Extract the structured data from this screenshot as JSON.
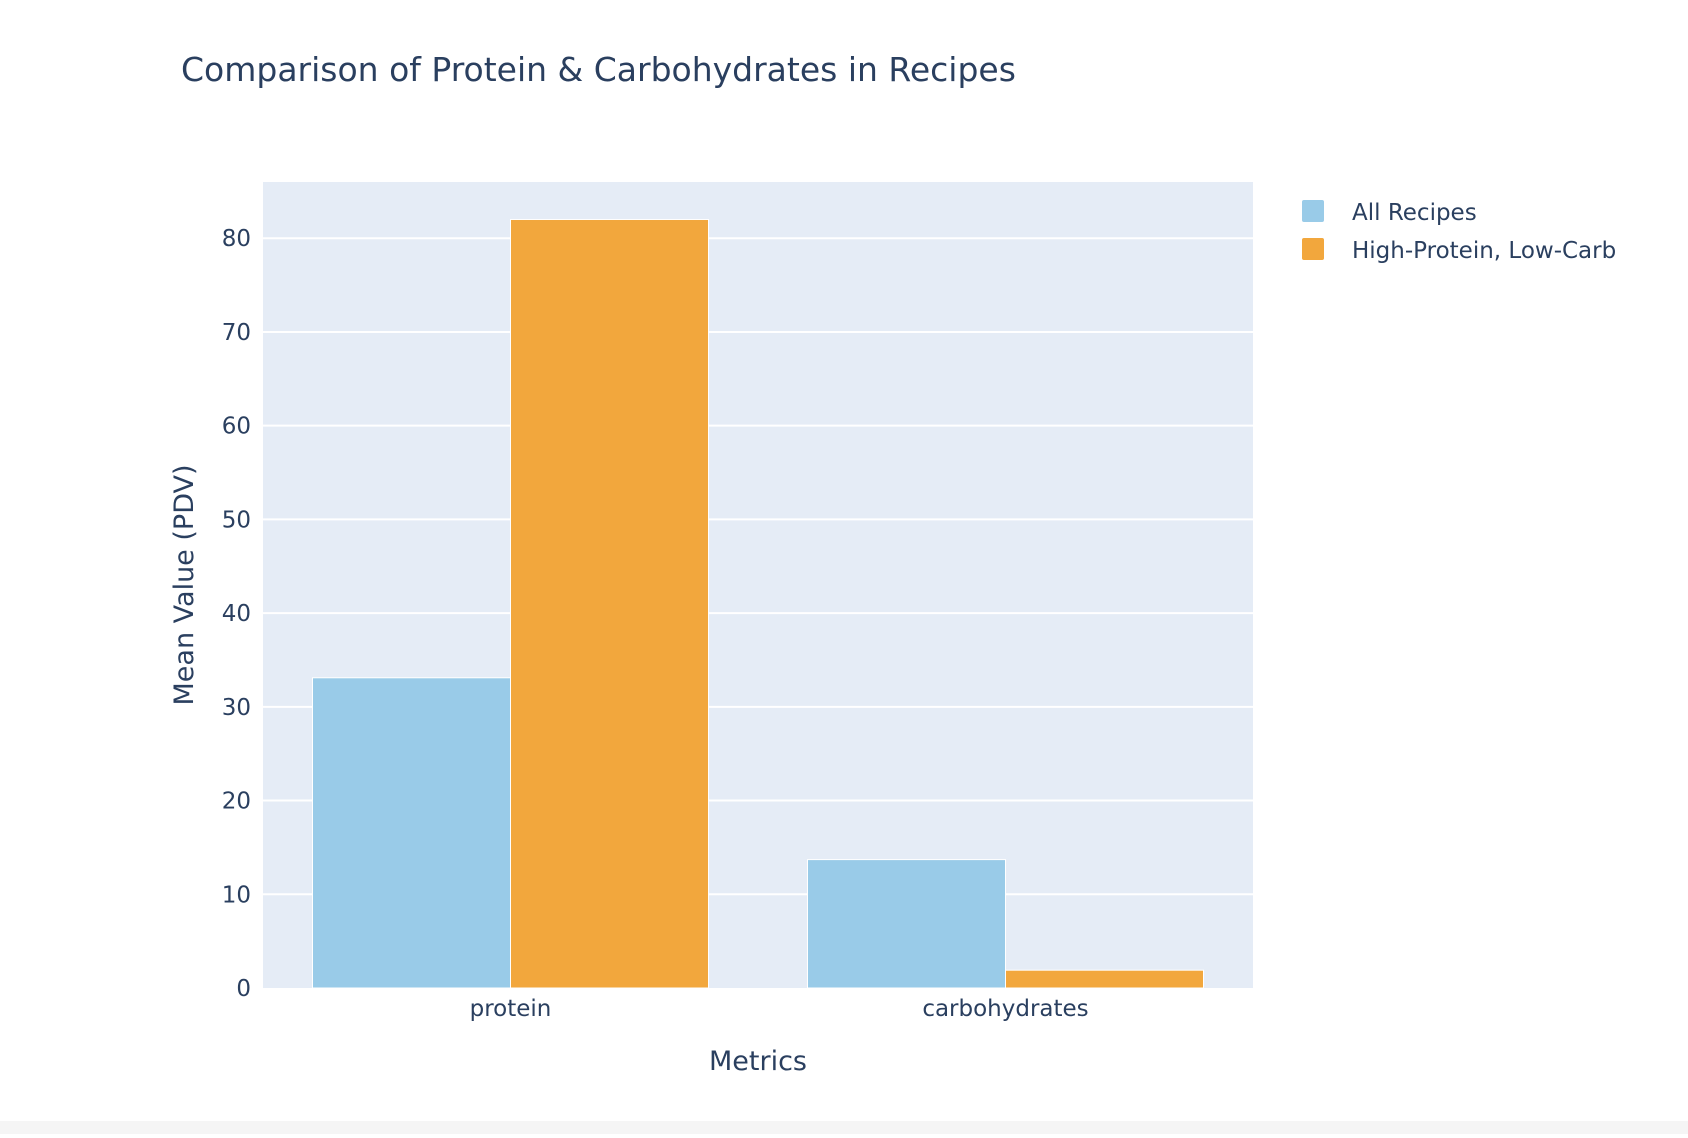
{
  "chart_data": {
    "type": "bar",
    "title": "Comparison of Protein & Carbohydrates in Recipes",
    "xlabel": "Metrics",
    "ylabel": "Mean Value (PDV)",
    "categories": [
      "protein",
      "carbohydrates"
    ],
    "series": [
      {
        "name": "All Recipes",
        "color": "#99cbe8",
        "values": [
          33.1,
          13.7
        ]
      },
      {
        "name": "High-Protein, Low-Carb",
        "color": "#f2a73d",
        "values": [
          82.0,
          1.9
        ]
      }
    ],
    "ylim": [
      0,
      86
    ],
    "yticks": [
      0,
      10,
      20,
      30,
      40,
      50,
      60,
      70,
      80
    ],
    "grid": true,
    "legend_position": "top-right",
    "plot_background": "#e5ecf6"
  }
}
